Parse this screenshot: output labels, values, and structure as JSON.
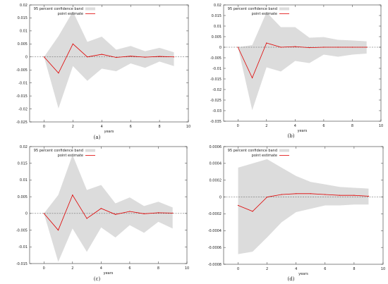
{
  "legend": {
    "band_label": "95 percent confidence band",
    "line_label": "point estimate",
    "band_color": "#dcdcdc",
    "line_color": "#e00000"
  },
  "chart_data": [
    {
      "type": "area",
      "caption": "(a)",
      "xlabel": "years",
      "ylabel": "",
      "xlim": [
        -1,
        10
      ],
      "ylim": [
        -0.025,
        0.02
      ],
      "x_ticks": [
        0,
        2,
        4,
        6,
        8,
        10
      ],
      "y_ticks": [
        -0.025,
        -0.02,
        -0.015,
        -0.01,
        -0.005,
        0,
        0.005,
        0.01,
        0.015,
        0.02
      ],
      "y_tick_labels": [
        "-0.025",
        "-0.02",
        "-0.015",
        "-0.01",
        "-0.005",
        "0",
        "0.005",
        "0.01",
        "0.015",
        "0.02"
      ],
      "x": [
        0,
        1,
        2,
        3,
        4,
        5,
        6,
        7,
        8,
        9
      ],
      "series": [
        {
          "name": "point estimate",
          "values": [
            0.0,
            -0.0062,
            0.005,
            0.0,
            0.001,
            -0.0002,
            0.0003,
            -0.0001,
            0.0002,
            0.0
          ]
        },
        {
          "name": "95 percent confidence band upper",
          "values": [
            0.0,
            0.008,
            0.0175,
            0.0058,
            0.0078,
            0.0028,
            0.0042,
            0.0022,
            0.0035,
            0.0018
          ]
        },
        {
          "name": "95 percent confidence band lower",
          "values": [
            0.0,
            -0.0198,
            -0.0035,
            -0.0092,
            -0.0045,
            -0.0055,
            -0.0025,
            -0.0042,
            -0.0018,
            -0.0035
          ]
        }
      ]
    },
    {
      "type": "area",
      "caption": "(b)",
      "xlabel": "years",
      "ylabel": "",
      "xlim": [
        -1,
        10
      ],
      "ylim": [
        -0.035,
        0.02
      ],
      "x_ticks": [
        0,
        2,
        4,
        6,
        8,
        10
      ],
      "y_ticks": [
        -0.035,
        -0.03,
        -0.025,
        -0.02,
        -0.015,
        -0.01,
        -0.005,
        0,
        0.005,
        0.01,
        0.015,
        0.02
      ],
      "y_tick_labels": [
        "-0.035",
        "-0.03",
        "-0.025",
        "-0.02",
        "-0.015",
        "-0.01",
        "-0.005",
        "0",
        "0.005",
        "0.01",
        "0.015",
        "0.02"
      ],
      "x": [
        0,
        1,
        2,
        3,
        4,
        5,
        6,
        7,
        8,
        9
      ],
      "series": [
        {
          "name": "point estimate",
          "values": [
            0.0,
            -0.0145,
            0.002,
            0.0,
            0.0003,
            -0.0002,
            0.0,
            0.0,
            0.0,
            0.0
          ]
        },
        {
          "name": "95 percent confidence band upper",
          "values": [
            0.0,
            0.001,
            0.0165,
            0.0095,
            0.0095,
            0.0045,
            0.0048,
            0.0035,
            0.0032,
            0.0028
          ]
        },
        {
          "name": "95 percent confidence band lower",
          "values": [
            0.0,
            -0.0298,
            -0.0095,
            -0.0115,
            -0.0065,
            -0.0075,
            -0.0035,
            -0.0045,
            -0.0035,
            -0.003
          ]
        }
      ]
    },
    {
      "type": "area",
      "caption": "(c)",
      "xlabel": "years",
      "ylabel": "",
      "xlim": [
        -1,
        10
      ],
      "ylim": [
        -0.015,
        0.02
      ],
      "x_ticks": [
        0,
        2,
        4,
        6,
        8,
        10
      ],
      "y_ticks": [
        -0.015,
        -0.01,
        -0.005,
        0,
        0.005,
        0.01,
        0.015,
        0.02
      ],
      "y_tick_labels": [
        "-0.015",
        "-0.01",
        "-0.005",
        "0",
        "0.005",
        "0.01",
        "0.015",
        "0.02"
      ],
      "x": [
        0,
        1,
        2,
        3,
        4,
        5,
        6,
        7,
        8,
        9
      ],
      "series": [
        {
          "name": "point estimate",
          "values": [
            0.0,
            -0.005,
            0.0055,
            -0.0015,
            0.0015,
            -0.0003,
            0.0006,
            -0.0001,
            0.0002,
            0.0001
          ]
        },
        {
          "name": "95 percent confidence band upper",
          "values": [
            0.0,
            0.0055,
            0.0175,
            0.007,
            0.0085,
            0.003,
            0.0048,
            0.0022,
            0.0035,
            0.0018
          ]
        },
        {
          "name": "95 percent confidence band lower",
          "values": [
            0.0,
            -0.0145,
            -0.0045,
            -0.0115,
            -0.0042,
            -0.0072,
            -0.0035,
            -0.0058,
            -0.0025,
            -0.0045
          ]
        }
      ]
    },
    {
      "type": "area",
      "caption": "(d)",
      "xlabel": "years",
      "ylabel": "",
      "xlim": [
        -1,
        10
      ],
      "ylim": [
        -0.0008,
        0.0006
      ],
      "x_ticks": [
        0,
        2,
        4,
        6,
        8,
        10
      ],
      "y_ticks": [
        -0.0008,
        -0.0006,
        -0.0004,
        -0.0002,
        0,
        0.0002,
        0.0004,
        0.0006
      ],
      "y_tick_labels": [
        "-0.0008",
        "-0.0006",
        "-0.0004",
        "-0.0002",
        "0",
        "0.0002",
        "0.0004",
        "0.0006"
      ],
      "x": [
        0,
        1,
        2,
        3,
        4,
        5,
        6,
        7,
        8,
        9
      ],
      "series": [
        {
          "name": "point estimate",
          "values": [
            -0.0001,
            -0.00017,
            0.0,
            3e-05,
            4e-05,
            4e-05,
            3e-05,
            2e-05,
            2e-05,
            1e-05
          ]
        },
        {
          "name": "95 percent confidence band upper",
          "values": [
            0.00035,
            0.0004,
            0.00045,
            0.00035,
            0.00025,
            0.00018,
            0.00015,
            0.00012,
            0.00011,
            0.0001
          ]
        },
        {
          "name": "95 percent confidence band lower",
          "values": [
            -0.00068,
            -0.00065,
            -0.00048,
            -0.0003,
            -0.00018,
            -0.00014,
            -0.0001,
            -0.0001,
            -9e-05,
            -9e-05
          ]
        }
      ]
    }
  ]
}
